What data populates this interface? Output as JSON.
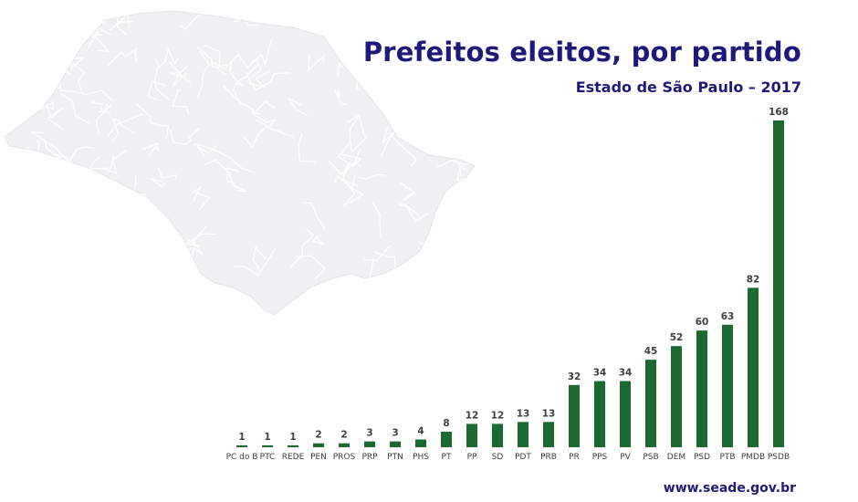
{
  "header": {
    "title": "Prefeitos eleitos, por partido",
    "subtitle": "Estado de São Paulo – 2017"
  },
  "footer": {
    "source": "www.seade.gov.br"
  },
  "colors": {
    "bar": "#1b6b30",
    "title": "#1f1a7a",
    "map_fill": "#eef0f2",
    "map_lines": "#ffffff"
  },
  "background": {
    "image": "map-of-sao-paulo-state"
  },
  "chart_data": {
    "type": "bar",
    "title": "Prefeitos eleitos, por partido",
    "subtitle": "Estado de São Paulo – 2017",
    "xlabel": "",
    "ylabel": "",
    "categories": [
      "PC do B",
      "PTC",
      "REDE",
      "PEN",
      "PROS",
      "PRP",
      "PTN",
      "PHS",
      "PT",
      "PP",
      "SD",
      "PDT",
      "PRB",
      "PR",
      "PPS",
      "PV",
      "PSB",
      "DEM",
      "PSD",
      "PTB",
      "PMDB",
      "PSDB"
    ],
    "values": [
      1,
      1,
      1,
      2,
      2,
      3,
      3,
      4,
      8,
      12,
      12,
      13,
      13,
      32,
      34,
      34,
      45,
      52,
      60,
      63,
      82,
      168
    ],
    "ylim": [
      0,
      168
    ],
    "grid": false,
    "legend": "none",
    "data_labels": true
  }
}
